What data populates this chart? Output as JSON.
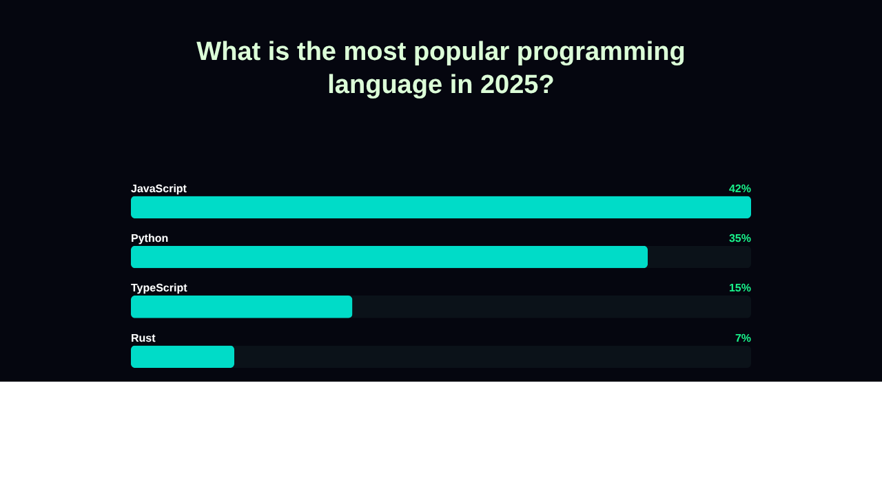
{
  "chart_data": {
    "type": "bar",
    "orientation": "horizontal",
    "title": "What is the most popular programming\nlanguage in 2025?",
    "categories": [
      "JavaScript",
      "Python",
      "TypeScript",
      "Rust"
    ],
    "values": [
      42,
      35,
      15,
      7
    ],
    "value_labels": [
      "42%",
      "35%",
      "15%",
      "7%"
    ],
    "color": "#00dcc8"
  }
}
